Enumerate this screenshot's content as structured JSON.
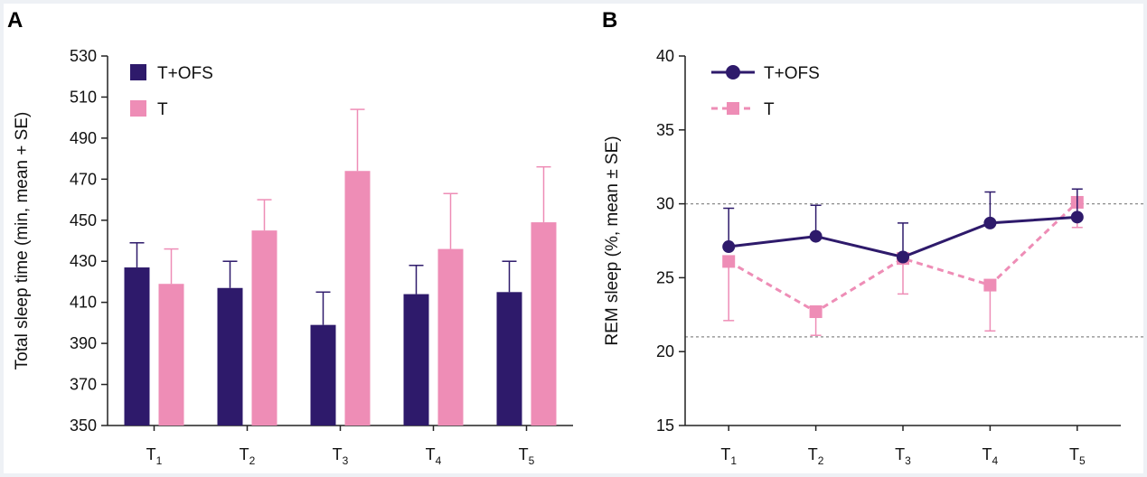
{
  "colors": {
    "ofs": "#2e1a6b",
    "t": "#ee8db6",
    "axis": "#222222",
    "refline": "#8a8a8a"
  },
  "chart_data": [
    {
      "panel": "A",
      "type": "bar",
      "ylabel": "Total sleep time (min, mean + SE)",
      "ylim": [
        350,
        530
      ],
      "yticks": [
        350,
        370,
        390,
        410,
        430,
        450,
        470,
        490,
        510,
        530
      ],
      "categories": [
        {
          "base": "T",
          "sub": "1"
        },
        {
          "base": "T",
          "sub": "2"
        },
        {
          "base": "T",
          "sub": "3"
        },
        {
          "base": "T",
          "sub": "4"
        },
        {
          "base": "T",
          "sub": "5"
        }
      ],
      "series": [
        {
          "name": "T+OFS",
          "color_key": "ofs",
          "values": [
            427,
            417,
            399,
            414,
            415
          ],
          "se": [
            12,
            13,
            16,
            14,
            15
          ]
        },
        {
          "name": "T",
          "color_key": "t",
          "values": [
            419,
            445,
            474,
            436,
            449
          ],
          "se": [
            17,
            15,
            30,
            27,
            27
          ]
        }
      ],
      "legend": "top-left"
    },
    {
      "panel": "B",
      "type": "line",
      "ylabel": "REM sleep (%, mean ± SE)",
      "ylim": [
        15,
        40
      ],
      "yticks": [
        15,
        20,
        25,
        30,
        35,
        40
      ],
      "reference_lines": [
        30,
        21
      ],
      "categories": [
        {
          "base": "T",
          "sub": "1"
        },
        {
          "base": "T",
          "sub": "2"
        },
        {
          "base": "T",
          "sub": "3"
        },
        {
          "base": "T",
          "sub": "4"
        },
        {
          "base": "T",
          "sub": "5"
        }
      ],
      "series": [
        {
          "name": "T+OFS",
          "color_key": "ofs",
          "marker": "circle",
          "dashed": false,
          "values": [
            27.1,
            27.8,
            26.4,
            28.7,
            29.1
          ],
          "se_upper": [
            2.6,
            2.1,
            2.3,
            2.1,
            1.9
          ],
          "se_lower": [
            0,
            0,
            0,
            0,
            0
          ]
        },
        {
          "name": "T",
          "color_key": "t",
          "marker": "square",
          "dashed": true,
          "values": [
            26.1,
            22.7,
            26.3,
            24.5,
            30.1
          ],
          "se_upper": [
            0,
            0,
            0,
            0,
            0
          ],
          "se_lower": [
            4.0,
            1.6,
            2.4,
            3.1,
            1.7
          ]
        }
      ],
      "legend": "top-left"
    }
  ]
}
